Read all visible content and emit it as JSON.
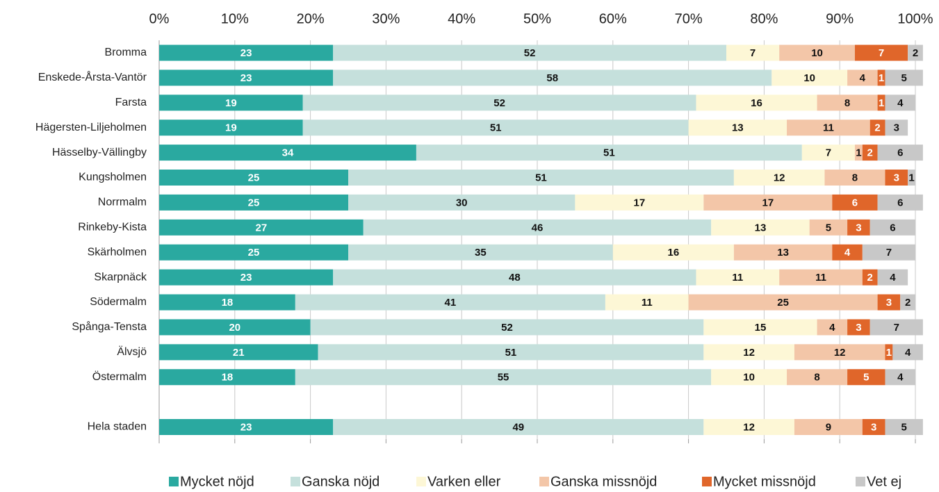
{
  "chart_data": {
    "type": "bar",
    "orientation": "horizontal",
    "stacked": true,
    "categories": [
      "Bromma",
      "Enskede-Årsta-Vantör",
      "Farsta",
      "Hägersten-Liljeholmen",
      "Hässelby-Vällingby",
      "Kungsholmen",
      "Norrmalm",
      "Rinkeby-Kista",
      "Skärholmen",
      "Skarpnäck",
      "Södermalm",
      "Spånga-Tensta",
      "Älvsjö",
      "Östermalm",
      null,
      "Hela staden"
    ],
    "series": [
      {
        "name": "Mycket nöjd",
        "color": "#2aa9a0",
        "values": [
          23,
          23,
          19,
          19,
          34,
          25,
          25,
          27,
          25,
          23,
          18,
          20,
          21,
          18,
          null,
          23
        ]
      },
      {
        "name": "Ganska nöjd",
        "color": "#c5e0dc",
        "values": [
          52,
          58,
          52,
          51,
          51,
          51,
          30,
          46,
          35,
          48,
          41,
          52,
          51,
          55,
          null,
          49
        ]
      },
      {
        "name": "Varken eller",
        "color": "#fdf7d6",
        "values": [
          7,
          10,
          16,
          13,
          7,
          12,
          17,
          13,
          16,
          11,
          11,
          15,
          12,
          10,
          null,
          12
        ]
      },
      {
        "name": "Ganska missnöjd",
        "color": "#f3c6a8",
        "values": [
          10,
          4,
          8,
          11,
          1,
          8,
          17,
          5,
          13,
          11,
          25,
          4,
          12,
          8,
          null,
          9
        ]
      },
      {
        "name": "Mycket missnöjd",
        "color": "#e0662a",
        "values": [
          7,
          1,
          1,
          2,
          2,
          3,
          6,
          3,
          4,
          2,
          3,
          3,
          1,
          5,
          null,
          3
        ]
      },
      {
        "name": "Vet ej",
        "color": "#c8c8c8",
        "values": [
          2,
          5,
          4,
          3,
          6,
          1,
          6,
          6,
          7,
          4,
          2,
          7,
          4,
          4,
          null,
          5
        ]
      }
    ],
    "xlim": [
      0,
      100
    ],
    "xticks": [
      {
        "value": 0,
        "label": "0%"
      },
      {
        "value": 10,
        "label": "10%"
      },
      {
        "value": 20,
        "label": "20%"
      },
      {
        "value": 30,
        "label": "30%"
      },
      {
        "value": 40,
        "label": "40%"
      },
      {
        "value": 50,
        "label": "50%"
      },
      {
        "value": 60,
        "label": "60%"
      },
      {
        "value": 70,
        "label": "70%"
      },
      {
        "value": 80,
        "label": "80%"
      },
      {
        "value": 90,
        "label": "90%"
      },
      {
        "value": 100,
        "label": "100%"
      }
    ],
    "grid": true,
    "legend": "bottom"
  }
}
